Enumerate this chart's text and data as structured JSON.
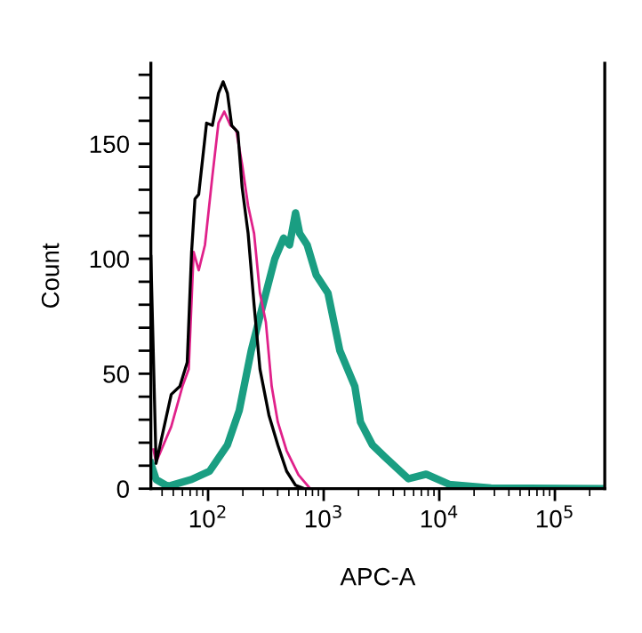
{
  "chart_data": {
    "type": "line",
    "xlabel": "APC-A",
    "ylabel": "Count",
    "log": "x",
    "xlim": [
      32,
      270000
    ],
    "xticks": [
      {
        "value": 100,
        "label": "10$^{2}$"
      },
      {
        "value": 1000,
        "label": "10$^{3}$"
      },
      {
        "value": 10000,
        "label": "10$^{4}$"
      },
      {
        "value": 100000,
        "label": "10$^{5}$"
      }
    ],
    "ylim": [
      0,
      185
    ],
    "yticks": [
      0,
      {
        "value": 10,
        "label": null
      },
      {
        "value": 20,
        "label": null
      },
      {
        "value": 30,
        "label": null
      },
      {
        "value": 40,
        "label": null
      },
      50,
      {
        "value": 60,
        "label": null
      },
      {
        "value": 70,
        "label": null
      },
      {
        "value": 80,
        "label": null
      },
      {
        "value": 90,
        "label": null
      },
      100,
      {
        "value": 110,
        "label": null
      },
      {
        "value": 120,
        "label": null
      },
      {
        "value": 130,
        "label": null
      },
      {
        "value": 140,
        "label": null
      },
      150,
      {
        "value": 160,
        "label": null
      },
      {
        "value": 170,
        "label": null
      },
      {
        "value": 180,
        "label": null
      }
    ],
    "grid": false,
    "legend": false,
    "marker": "none",
    "line_style": "solid",
    "series": [
      {
        "color": "#1a9e82",
        "x": [
          32,
          35.5,
          45,
          72,
          103,
          147,
          186,
          236,
          298,
          378,
          450,
          507,
          571,
          620,
          720,
          860,
          1090,
          1380,
          1860,
          2080,
          2640,
          3350,
          5400,
          7700,
          12300,
          28000,
          260000
        ],
        "values": [
          11,
          4,
          1,
          4,
          7.6,
          19,
          34,
          60,
          80,
          100,
          109,
          106,
          120,
          111,
          106,
          93,
          85,
          60,
          44.5,
          29,
          19,
          14,
          4.3,
          6.3,
          1.8,
          0.3,
          0
        ]
      },
      {
        "color": "#e0218a",
        "x": [
          33.7,
          35.5,
          48,
          60,
          68,
          75,
          83,
          94,
          109,
          123,
          138,
          156,
          175,
          197,
          222,
          250,
          281,
          316,
          355,
          401,
          478,
          605,
          765
        ],
        "values": [
          17,
          11.5,
          27,
          44.5,
          52,
          103,
          95,
          106,
          136,
          159,
          164,
          158,
          156,
          141,
          123,
          111,
          85,
          72.5,
          44.5,
          29,
          16.5,
          6,
          0
        ]
      },
      {
        "color": "#000000",
        "x": [
          32,
          35.5,
          48,
          57,
          66,
          72,
          77,
          83,
          97,
          109,
          123,
          135,
          147,
          160,
          181,
          197,
          222,
          250,
          281,
          336,
          401,
          478,
          571,
          682
        ],
        "values": [
          101,
          11,
          41,
          44.5,
          55,
          103,
          126,
          128,
          159,
          158,
          172,
          177,
          172,
          158,
          155,
          131,
          111,
          80,
          52,
          32,
          19,
          7.6,
          1.5,
          0
        ]
      }
    ]
  }
}
